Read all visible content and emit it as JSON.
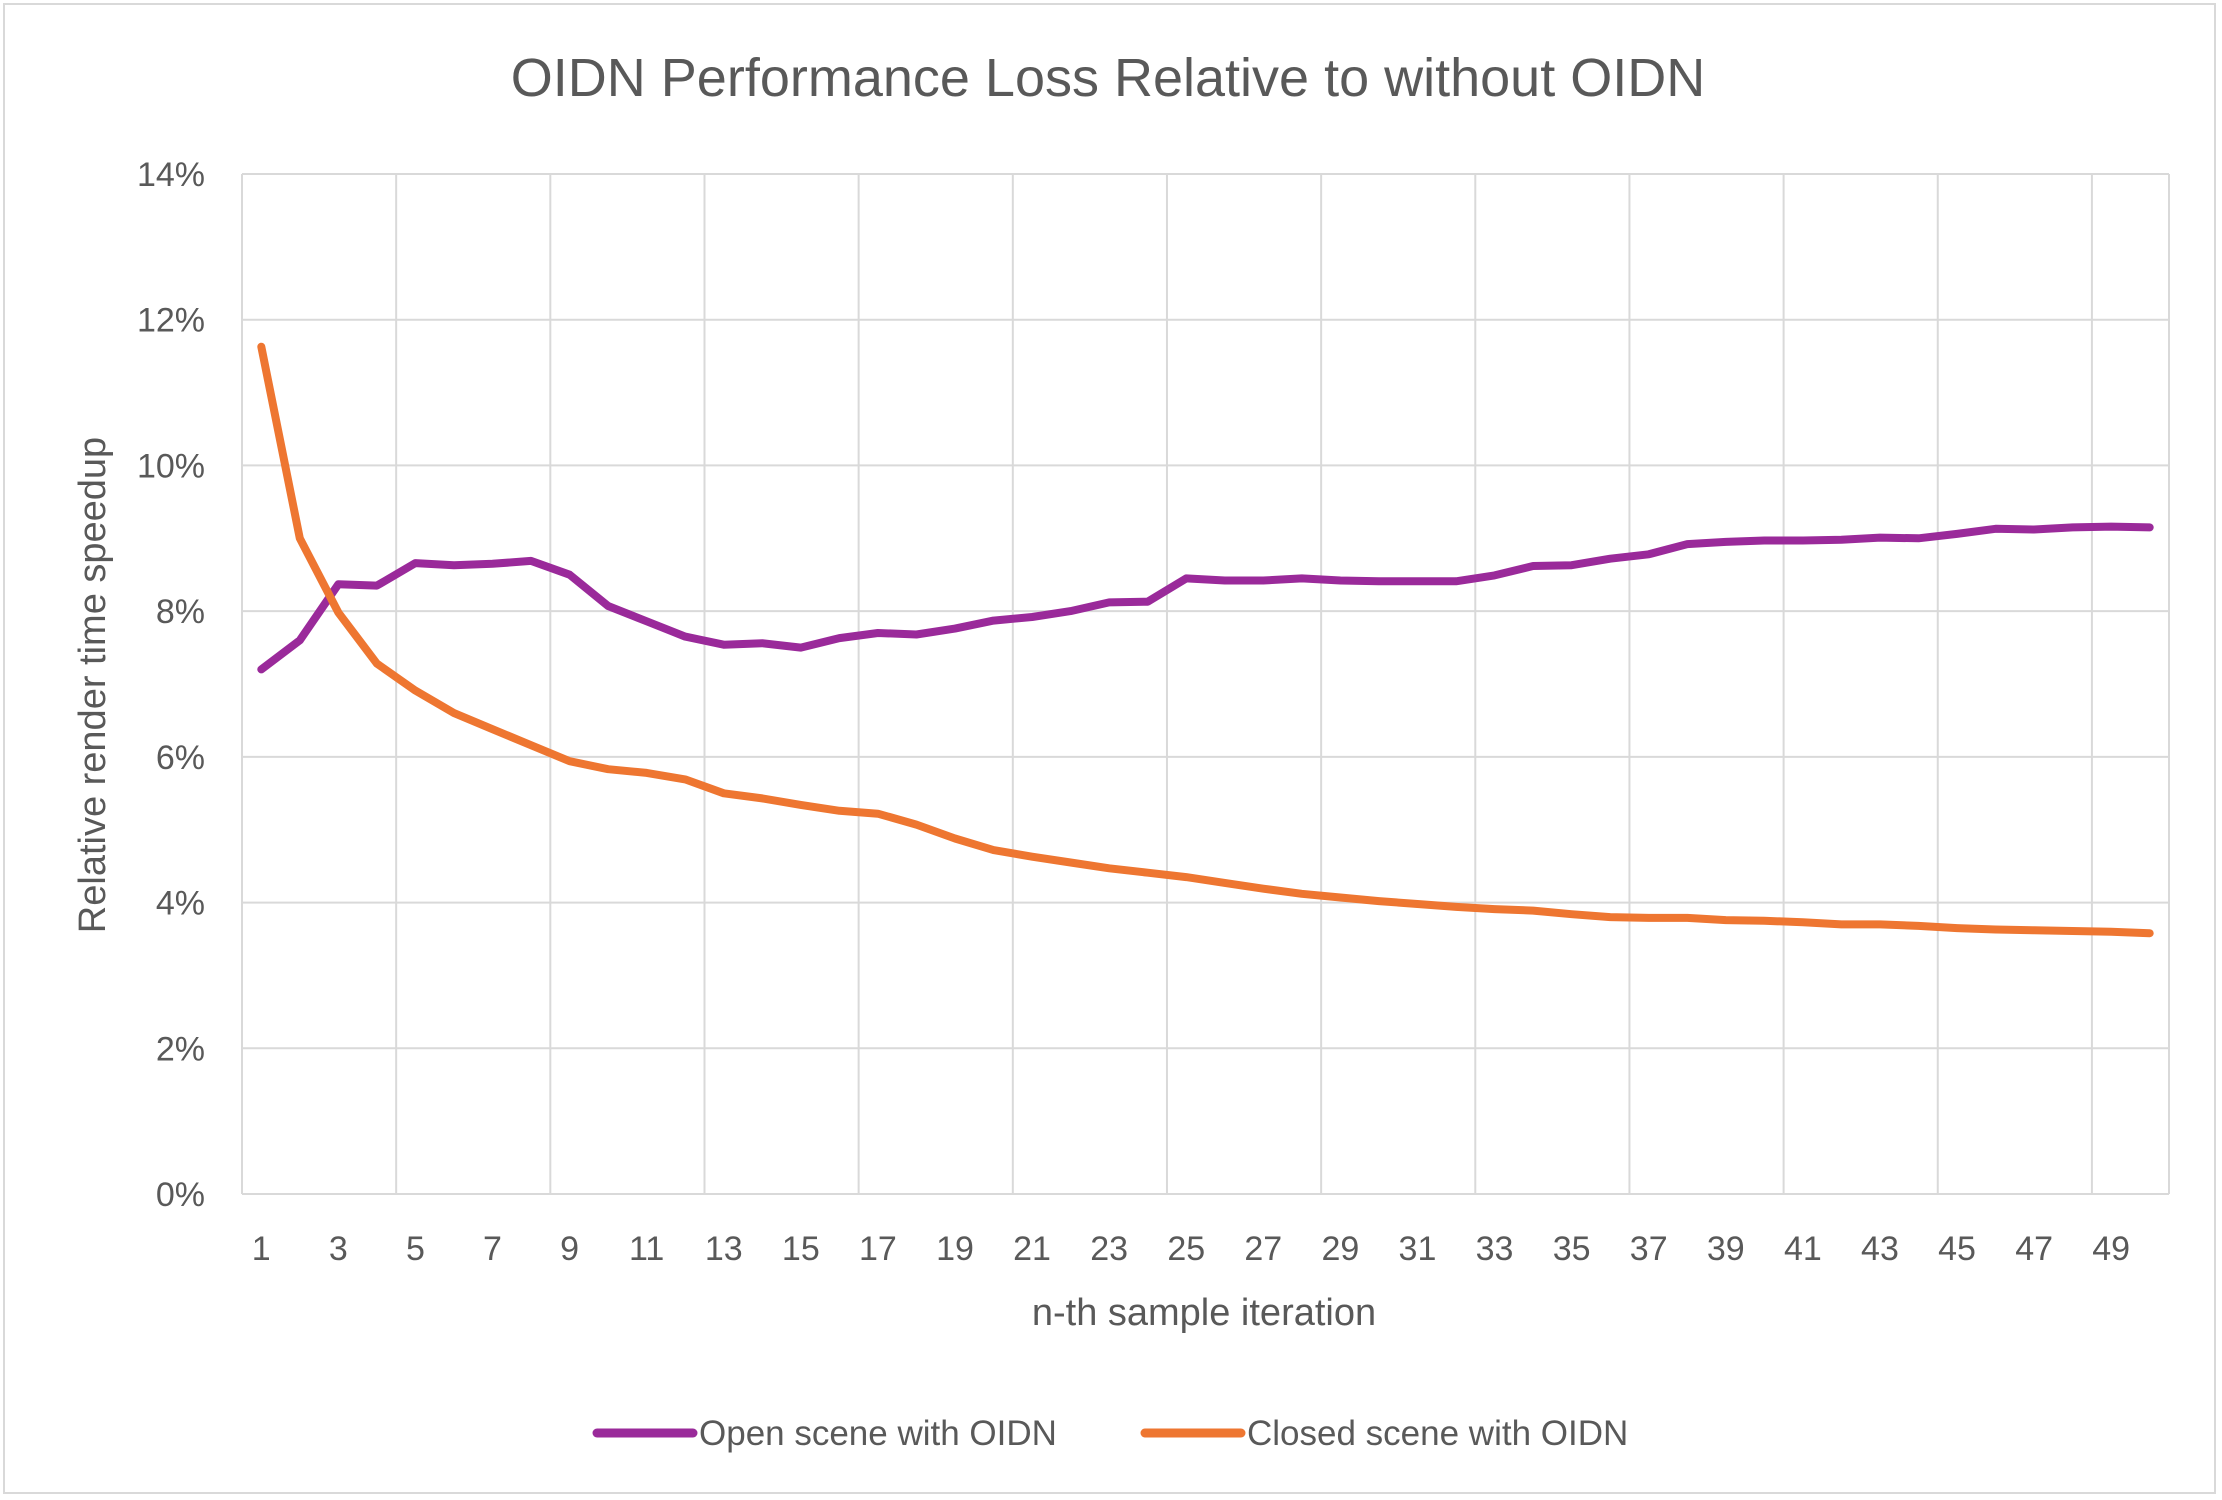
{
  "chart_data": {
    "type": "line",
    "title": "OIDN Performance Loss Relative to without OIDN",
    "xlabel": "n-th sample iteration",
    "ylabel": "Relative render time speedup",
    "x": [
      1,
      2,
      3,
      4,
      5,
      6,
      7,
      8,
      9,
      10,
      11,
      12,
      13,
      14,
      15,
      16,
      17,
      18,
      19,
      20,
      21,
      22,
      23,
      24,
      25,
      26,
      27,
      28,
      29,
      30,
      31,
      32,
      33,
      34,
      35,
      36,
      37,
      38,
      39,
      40,
      41,
      42,
      43,
      44,
      45,
      46,
      47,
      48,
      49,
      50
    ],
    "x_tick_labels": [
      "1",
      "3",
      "5",
      "7",
      "9",
      "11",
      "13",
      "15",
      "17",
      "19",
      "21",
      "23",
      "25",
      "27",
      "29",
      "31",
      "33",
      "35",
      "37",
      "39",
      "41",
      "43",
      "45",
      "47",
      "49"
    ],
    "y_tick_labels": [
      "0%",
      "2%",
      "4%",
      "6%",
      "8%",
      "10%",
      "12%",
      "14%"
    ],
    "ylim": [
      0,
      14
    ],
    "y_unit": "%",
    "grid": true,
    "legend_position": "bottom",
    "series": [
      {
        "name": "Open scene with OIDN",
        "color": "#9a2a9a",
        "values": [
          7.2,
          7.6,
          8.37,
          8.35,
          8.66,
          8.63,
          8.65,
          8.69,
          8.5,
          8.07,
          7.86,
          7.65,
          7.54,
          7.56,
          7.5,
          7.63,
          7.7,
          7.68,
          7.76,
          7.87,
          7.92,
          8.0,
          8.12,
          8.13,
          8.45,
          8.42,
          8.42,
          8.45,
          8.42,
          8.41,
          8.41,
          8.41,
          8.49,
          8.62,
          8.63,
          8.72,
          8.78,
          8.92,
          8.95,
          8.97,
          8.97,
          8.98,
          9.01,
          9.0,
          9.06,
          9.13,
          9.12,
          9.15,
          9.16,
          9.15
        ]
      },
      {
        "name": "Closed scene with OIDN",
        "color": "#ee7631",
        "values": [
          11.63,
          9.0,
          7.98,
          7.28,
          6.91,
          6.6,
          6.38,
          6.16,
          5.94,
          5.83,
          5.78,
          5.69,
          5.5,
          5.43,
          5.34,
          5.26,
          5.22,
          5.07,
          4.88,
          4.72,
          4.63,
          4.55,
          4.47,
          4.41,
          4.35,
          4.27,
          4.19,
          4.12,
          4.07,
          4.02,
          3.98,
          3.94,
          3.91,
          3.89,
          3.84,
          3.8,
          3.79,
          3.79,
          3.76,
          3.75,
          3.73,
          3.7,
          3.7,
          3.68,
          3.65,
          3.63,
          3.62,
          3.61,
          3.6,
          3.58
        ]
      }
    ]
  }
}
